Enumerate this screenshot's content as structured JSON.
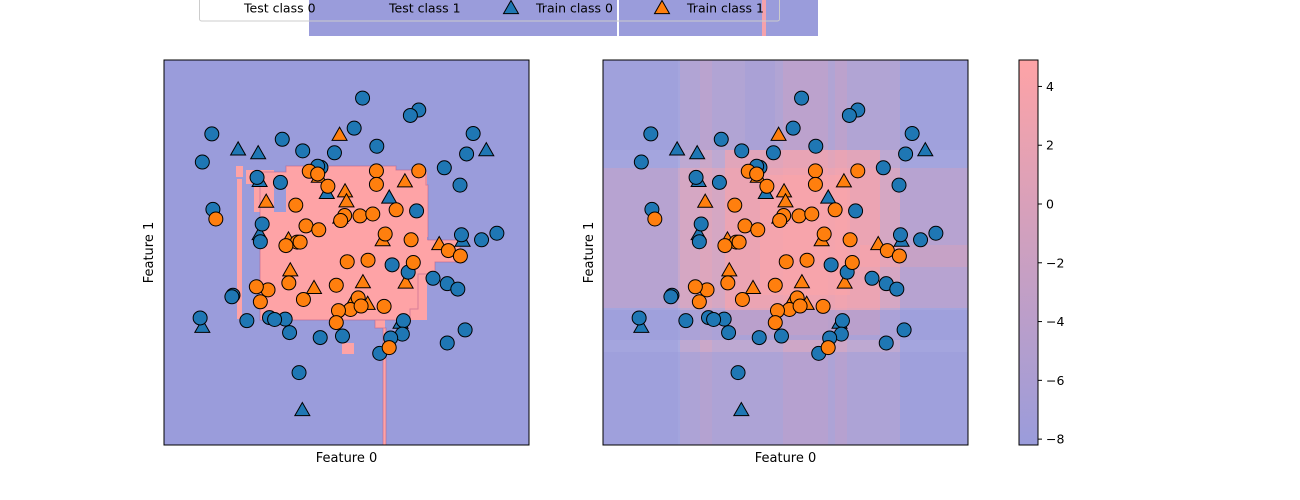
{
  "legend": {
    "placement": "top-center",
    "entries": [
      {
        "label": "Test class 0",
        "marker": "circle",
        "color": "#1f77b4"
      },
      {
        "label": "Test class 1",
        "marker": "circle",
        "color": "#ff7f0e"
      },
      {
        "label": "Train class 0",
        "marker": "triangle",
        "color": "#1f77b4"
      },
      {
        "label": "Train class 1",
        "marker": "triangle",
        "color": "#ff7f0e"
      }
    ]
  },
  "colors": {
    "class0": "#1f77b4",
    "class1": "#ff7f0e",
    "region0": "#9a9cdb",
    "region1": "#fea3a6",
    "overlay": "#9a9cdb"
  },
  "chart_data": [
    {
      "type": "scatter",
      "xlabel": "Feature 0",
      "ylabel": "Feature 1",
      "xlim": [
        0,
        1
      ],
      "ylim": [
        0,
        1
      ],
      "grid": false,
      "background": "decision-regions",
      "series": [
        {
          "name": "Train class 0",
          "marker": "triangle",
          "points": [
            [
              0.203,
              0.768
            ],
            [
              0.262,
              0.686
            ],
            [
              0.446,
              0.655
            ],
            [
              0.262,
              0.548
            ],
            [
              0.818,
              0.531
            ],
            [
              0.883,
              0.766
            ],
            [
              0.105,
              0.307
            ],
            [
              0.648,
              0.318
            ],
            [
              0.379,
              0.091
            ],
            [
              0.258,
              0.758
            ],
            [
              0.617,
              0.643
            ]
          ]
        },
        {
          "name": "Train class 1",
          "marker": "triangle",
          "points": [
            [
              0.481,
              0.806
            ],
            [
              0.424,
              0.697
            ],
            [
              0.483,
              0.591
            ],
            [
              0.28,
              0.632
            ],
            [
              0.66,
              0.685
            ],
            [
              0.754,
              0.522
            ],
            [
              0.599,
              0.532
            ],
            [
              0.341,
              0.534
            ],
            [
              0.346,
              0.454
            ],
            [
              0.411,
              0.408
            ],
            [
              0.545,
              0.423
            ],
            [
              0.662,
              0.422
            ],
            [
              0.516,
              0.371
            ],
            [
              0.558,
              0.367
            ],
            [
              0.496,
              0.659
            ],
            [
              0.5,
              0.633
            ]
          ]
        },
        {
          "name": "Test class 0",
          "marker": "circle",
          "points": [
            [
              0.544,
              0.901
            ],
            [
              0.698,
              0.87
            ],
            [
              0.675,
              0.856
            ],
            [
              0.131,
              0.808
            ],
            [
              0.324,
              0.794
            ],
            [
              0.521,
              0.823
            ],
            [
              0.583,
              0.776
            ],
            [
              0.38,
              0.764
            ],
            [
              0.467,
              0.759
            ],
            [
              0.105,
              0.735
            ],
            [
              0.255,
              0.695
            ],
            [
              0.319,
              0.682
            ],
            [
              0.768,
              0.72
            ],
            [
              0.829,
              0.756
            ],
            [
              0.847,
              0.809
            ],
            [
              0.43,
              0.721
            ],
            [
              0.421,
              0.724
            ],
            [
              0.811,
              0.675
            ],
            [
              0.134,
              0.612
            ],
            [
              0.692,
              0.608
            ],
            [
              0.269,
              0.574
            ],
            [
              0.264,
              0.528
            ],
            [
              0.815,
              0.546
            ],
            [
              0.87,
              0.533
            ],
            [
              0.912,
              0.55
            ],
            [
              0.669,
              0.449
            ],
            [
              0.625,
              0.468
            ],
            [
              0.737,
              0.433
            ],
            [
              0.776,
              0.419
            ],
            [
              0.805,
              0.405
            ],
            [
              0.189,
              0.389
            ],
            [
              0.186,
              0.385
            ],
            [
              0.099,
              0.33
            ],
            [
              0.227,
              0.323
            ],
            [
              0.289,
              0.331
            ],
            [
              0.332,
              0.327
            ],
            [
              0.656,
              0.323
            ],
            [
              0.825,
              0.299
            ],
            [
              0.653,
              0.288
            ],
            [
              0.344,
              0.292
            ],
            [
              0.428,
              0.279
            ],
            [
              0.489,
              0.283
            ],
            [
              0.776,
              0.265
            ],
            [
              0.621,
              0.278
            ],
            [
              0.591,
              0.238
            ],
            [
              0.37,
              0.188
            ],
            [
              0.303,
              0.326
            ]
          ]
        },
        {
          "name": "Test class 1",
          "marker": "circle",
          "points": [
            [
              0.398,
              0.711
            ],
            [
              0.421,
              0.704
            ],
            [
              0.582,
              0.712
            ],
            [
              0.698,
              0.712
            ],
            [
              0.582,
              0.677
            ],
            [
              0.449,
              0.672
            ],
            [
              0.361,
              0.623
            ],
            [
              0.495,
              0.596
            ],
            [
              0.484,
              0.583
            ],
            [
              0.537,
              0.595
            ],
            [
              0.572,
              0.6
            ],
            [
              0.636,
              0.611
            ],
            [
              0.389,
              0.569
            ],
            [
              0.424,
              0.559
            ],
            [
              0.365,
              0.527
            ],
            [
              0.334,
              0.518
            ],
            [
              0.373,
              0.527
            ],
            [
              0.606,
              0.548
            ],
            [
              0.677,
              0.533
            ],
            [
              0.779,
              0.505
            ],
            [
              0.812,
              0.491
            ],
            [
              0.502,
              0.476
            ],
            [
              0.559,
              0.48
            ],
            [
              0.683,
              0.474
            ],
            [
              0.142,
              0.587
            ],
            [
              0.285,
              0.403
            ],
            [
              0.342,
              0.421
            ],
            [
              0.472,
              0.415
            ],
            [
              0.532,
              0.382
            ],
            [
              0.264,
              0.372
            ],
            [
              0.382,
              0.378
            ],
            [
              0.511,
              0.352
            ],
            [
              0.478,
              0.349
            ],
            [
              0.54,
              0.361
            ],
            [
              0.603,
              0.36
            ],
            [
              0.472,
              0.318
            ],
            [
              0.617,
              0.253
            ],
            [
              0.253,
              0.411
            ]
          ]
        }
      ]
    },
    {
      "type": "scatter",
      "xlabel": "Feature 0",
      "ylabel": "Feature 1",
      "xlim": [
        0,
        1
      ],
      "ylim": [
        0,
        1
      ],
      "grid": false,
      "background": "continuous-decision-function",
      "series": [
        {
          "name": "Train class 0",
          "marker": "triangle",
          "points": [
            [
              0.203,
              0.768
            ],
            [
              0.262,
              0.686
            ],
            [
              0.446,
              0.655
            ],
            [
              0.262,
              0.548
            ],
            [
              0.818,
              0.531
            ],
            [
              0.883,
              0.766
            ],
            [
              0.105,
              0.307
            ],
            [
              0.648,
              0.318
            ],
            [
              0.379,
              0.091
            ],
            [
              0.258,
              0.758
            ],
            [
              0.617,
              0.643
            ]
          ]
        },
        {
          "name": "Train class 1",
          "marker": "triangle",
          "points": [
            [
              0.481,
              0.806
            ],
            [
              0.424,
              0.697
            ],
            [
              0.483,
              0.591
            ],
            [
              0.28,
              0.632
            ],
            [
              0.66,
              0.685
            ],
            [
              0.754,
              0.522
            ],
            [
              0.599,
              0.532
            ],
            [
              0.341,
              0.534
            ],
            [
              0.346,
              0.454
            ],
            [
              0.411,
              0.408
            ],
            [
              0.545,
              0.423
            ],
            [
              0.662,
              0.422
            ],
            [
              0.516,
              0.371
            ],
            [
              0.558,
              0.367
            ],
            [
              0.496,
              0.659
            ],
            [
              0.5,
              0.633
            ]
          ]
        },
        {
          "name": "Test class 0",
          "marker": "circle",
          "points": [
            [
              0.544,
              0.901
            ],
            [
              0.698,
              0.87
            ],
            [
              0.675,
              0.856
            ],
            [
              0.131,
              0.808
            ],
            [
              0.324,
              0.794
            ],
            [
              0.521,
              0.823
            ],
            [
              0.583,
              0.776
            ],
            [
              0.38,
              0.764
            ],
            [
              0.467,
              0.759
            ],
            [
              0.105,
              0.735
            ],
            [
              0.255,
              0.695
            ],
            [
              0.319,
              0.682
            ],
            [
              0.768,
              0.72
            ],
            [
              0.829,
              0.756
            ],
            [
              0.847,
              0.809
            ],
            [
              0.43,
              0.721
            ],
            [
              0.421,
              0.724
            ],
            [
              0.811,
              0.675
            ],
            [
              0.134,
              0.612
            ],
            [
              0.692,
              0.608
            ],
            [
              0.269,
              0.574
            ],
            [
              0.264,
              0.528
            ],
            [
              0.815,
              0.546
            ],
            [
              0.87,
              0.533
            ],
            [
              0.912,
              0.55
            ],
            [
              0.669,
              0.449
            ],
            [
              0.625,
              0.468
            ],
            [
              0.737,
              0.433
            ],
            [
              0.776,
              0.419
            ],
            [
              0.805,
              0.405
            ],
            [
              0.189,
              0.389
            ],
            [
              0.186,
              0.385
            ],
            [
              0.099,
              0.33
            ],
            [
              0.227,
              0.323
            ],
            [
              0.289,
              0.331
            ],
            [
              0.332,
              0.327
            ],
            [
              0.656,
              0.323
            ],
            [
              0.825,
              0.299
            ],
            [
              0.653,
              0.288
            ],
            [
              0.344,
              0.292
            ],
            [
              0.428,
              0.279
            ],
            [
              0.489,
              0.283
            ],
            [
              0.776,
              0.265
            ],
            [
              0.621,
              0.278
            ],
            [
              0.591,
              0.238
            ],
            [
              0.37,
              0.188
            ],
            [
              0.303,
              0.326
            ]
          ]
        },
        {
          "name": "Test class 1",
          "marker": "circle",
          "points": [
            [
              0.398,
              0.711
            ],
            [
              0.421,
              0.704
            ],
            [
              0.582,
              0.712
            ],
            [
              0.698,
              0.712
            ],
            [
              0.582,
              0.677
            ],
            [
              0.449,
              0.672
            ],
            [
              0.361,
              0.623
            ],
            [
              0.495,
              0.596
            ],
            [
              0.484,
              0.583
            ],
            [
              0.537,
              0.595
            ],
            [
              0.572,
              0.6
            ],
            [
              0.636,
              0.611
            ],
            [
              0.389,
              0.569
            ],
            [
              0.424,
              0.559
            ],
            [
              0.365,
              0.527
            ],
            [
              0.334,
              0.518
            ],
            [
              0.373,
              0.527
            ],
            [
              0.606,
              0.548
            ],
            [
              0.677,
              0.533
            ],
            [
              0.779,
              0.505
            ],
            [
              0.812,
              0.491
            ],
            [
              0.502,
              0.476
            ],
            [
              0.559,
              0.48
            ],
            [
              0.683,
              0.474
            ],
            [
              0.142,
              0.587
            ],
            [
              0.285,
              0.403
            ],
            [
              0.342,
              0.421
            ],
            [
              0.472,
              0.415
            ],
            [
              0.532,
              0.382
            ],
            [
              0.264,
              0.372
            ],
            [
              0.382,
              0.378
            ],
            [
              0.511,
              0.352
            ],
            [
              0.478,
              0.349
            ],
            [
              0.54,
              0.361
            ],
            [
              0.603,
              0.36
            ],
            [
              0.472,
              0.318
            ],
            [
              0.617,
              0.253
            ],
            [
              0.253,
              0.411
            ]
          ]
        }
      ]
    }
  ],
  "colorbar": {
    "ylim": [
      -8.2,
      4.9
    ],
    "ticks": [
      4,
      2,
      0,
      -2,
      -4,
      -6,
      -8
    ],
    "tick_labels": [
      "4",
      "2",
      "0",
      "−2",
      "−4",
      "−6",
      "−8"
    ],
    "color_low": "#9a9cdb",
    "color_high": "#fea3a6"
  }
}
